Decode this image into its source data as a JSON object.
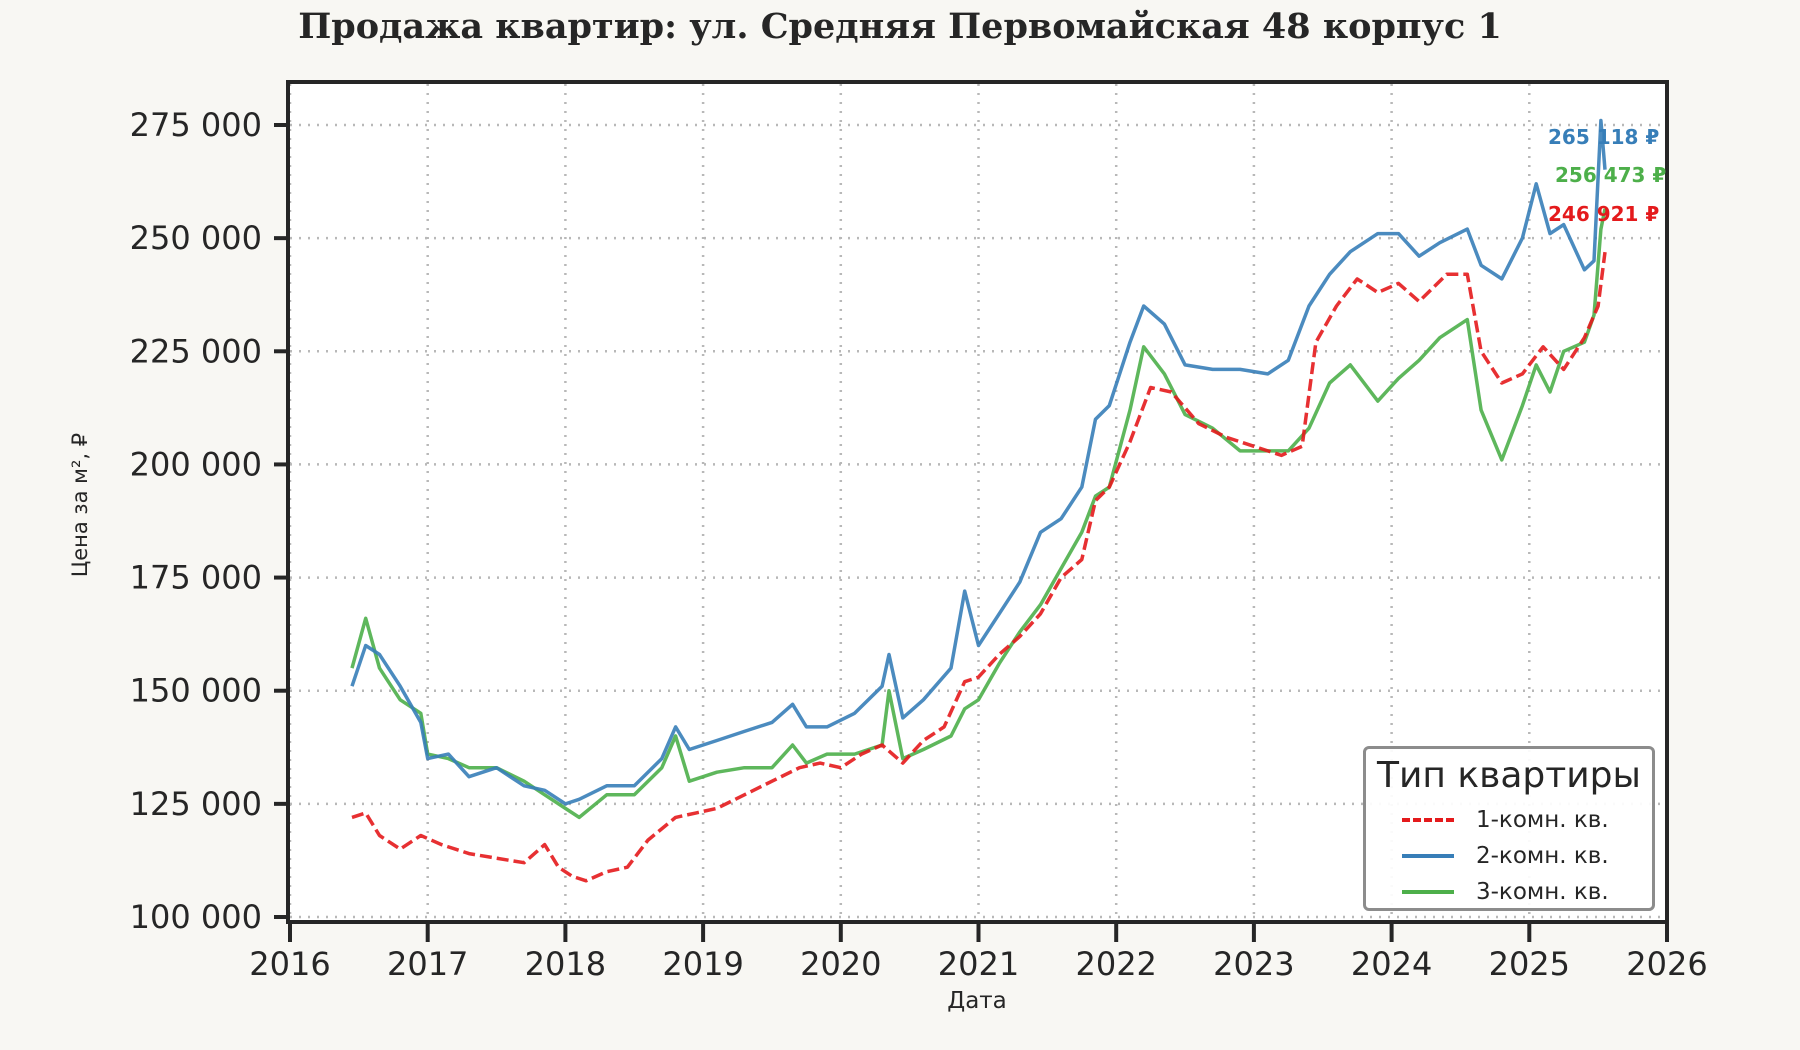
{
  "chart_data": {
    "type": "line",
    "title": "Продажа квартир: ул. Средняя Первомайская 48 корпус 1",
    "xlabel": "Дата",
    "ylabel": "Цена за м², ₽",
    "xlim": [
      2016,
      2026
    ],
    "ylim": [
      100000,
      275000
    ],
    "x_ticks": [
      "2016",
      "2017",
      "2018",
      "2019",
      "2020",
      "2021",
      "2022",
      "2023",
      "2024",
      "2025",
      "2026"
    ],
    "y_ticks": [
      "100 000",
      "125 000",
      "150 000",
      "175 000",
      "200 000",
      "225 000",
      "250 000",
      "275 000"
    ],
    "grid": true,
    "legend": {
      "title": "Тип квартиры",
      "position": "lower right"
    },
    "series": [
      {
        "name": "1-комн. кв.",
        "color": "#e41a1c",
        "style": "dashed",
        "end_label": "246 921 ₽",
        "x": [
          2016.45,
          2016.55,
          2016.65,
          2016.8,
          2016.95,
          2017.1,
          2017.3,
          2017.5,
          2017.7,
          2017.85,
          2017.95,
          2018.05,
          2018.15,
          2018.3,
          2018.45,
          2018.6,
          2018.8,
          2018.95,
          2019.1,
          2019.3,
          2019.5,
          2019.7,
          2019.85,
          2020.0,
          2020.15,
          2020.3,
          2020.45,
          2020.6,
          2020.75,
          2020.9,
          2021.0,
          2021.15,
          2021.3,
          2021.45,
          2021.6,
          2021.75,
          2021.85,
          2021.95,
          2022.1,
          2022.25,
          2022.4,
          2022.6,
          2022.8,
          2023.0,
          2023.2,
          2023.35,
          2023.45,
          2023.6,
          2023.75,
          2023.9,
          2024.05,
          2024.2,
          2024.4,
          2024.55,
          2024.65,
          2024.8,
          2024.95,
          2025.1,
          2025.25,
          2025.4,
          2025.5,
          2025.55
        ],
        "y": [
          122000,
          123000,
          118000,
          115000,
          118000,
          116000,
          114000,
          113000,
          112000,
          116000,
          111000,
          109000,
          108000,
          110000,
          111000,
          117000,
          122000,
          123000,
          124000,
          127000,
          130000,
          133000,
          134000,
          133000,
          136000,
          138000,
          134000,
          139000,
          142000,
          152000,
          153000,
          158000,
          162000,
          167000,
          175000,
          179000,
          192000,
          195000,
          205000,
          217000,
          216000,
          209000,
          206000,
          204000,
          202000,
          204000,
          227000,
          235000,
          241000,
          238000,
          240000,
          236000,
          242000,
          242000,
          225000,
          218000,
          220000,
          226000,
          221000,
          228000,
          235000,
          246921
        ]
      },
      {
        "name": "2-комн. кв.",
        "color": "#377eb8",
        "style": "solid",
        "end_label": "265 118 ₽",
        "x": [
          2016.45,
          2016.55,
          2016.65,
          2016.8,
          2016.95,
          2017.0,
          2017.15,
          2017.3,
          2017.5,
          2017.7,
          2017.85,
          2018.0,
          2018.1,
          2018.3,
          2018.5,
          2018.7,
          2018.8,
          2018.9,
          2019.1,
          2019.3,
          2019.5,
          2019.65,
          2019.75,
          2019.9,
          2020.1,
          2020.3,
          2020.35,
          2020.45,
          2020.6,
          2020.8,
          2020.9,
          2021.0,
          2021.15,
          2021.3,
          2021.45,
          2021.6,
          2021.75,
          2021.85,
          2021.95,
          2022.1,
          2022.2,
          2022.35,
          2022.5,
          2022.7,
          2022.9,
          2023.1,
          2023.25,
          2023.4,
          2023.55,
          2023.7,
          2023.9,
          2024.05,
          2024.2,
          2024.35,
          2024.55,
          2024.65,
          2024.8,
          2024.95,
          2025.05,
          2025.15,
          2025.25,
          2025.4,
          2025.47,
          2025.52,
          2025.55
        ],
        "y": [
          151000,
          160000,
          158000,
          151000,
          143000,
          135000,
          136000,
          131000,
          133000,
          129000,
          128000,
          125000,
          126000,
          129000,
          129000,
          135000,
          142000,
          137000,
          139000,
          141000,
          143000,
          147000,
          142000,
          142000,
          145000,
          151000,
          158000,
          144000,
          148000,
          155000,
          172000,
          160000,
          167000,
          174000,
          185000,
          188000,
          195000,
          210000,
          213000,
          227000,
          235000,
          231000,
          222000,
          221000,
          221000,
          220000,
          223000,
          235000,
          242000,
          247000,
          251000,
          251000,
          246000,
          249000,
          252000,
          244000,
          241000,
          250000,
          262000,
          251000,
          253000,
          243000,
          245000,
          276000,
          265118
        ]
      },
      {
        "name": "3-комн. кв.",
        "color": "#4daf4a",
        "style": "solid",
        "end_label": "256 473 ₽",
        "x": [
          2016.45,
          2016.55,
          2016.65,
          2016.8,
          2016.95,
          2017.0,
          2017.15,
          2017.3,
          2017.5,
          2017.7,
          2017.85,
          2018.0,
          2018.1,
          2018.3,
          2018.5,
          2018.7,
          2018.8,
          2018.9,
          2019.1,
          2019.3,
          2019.5,
          2019.65,
          2019.75,
          2019.9,
          2020.1,
          2020.3,
          2020.35,
          2020.45,
          2020.6,
          2020.8,
          2020.9,
          2021.0,
          2021.15,
          2021.3,
          2021.45,
          2021.6,
          2021.75,
          2021.85,
          2021.95,
          2022.1,
          2022.2,
          2022.35,
          2022.5,
          2022.7,
          2022.9,
          2023.1,
          2023.25,
          2023.4,
          2023.55,
          2023.7,
          2023.9,
          2024.05,
          2024.2,
          2024.35,
          2024.55,
          2024.65,
          2024.8,
          2024.95,
          2025.05,
          2025.15,
          2025.25,
          2025.4,
          2025.47,
          2025.52,
          2025.55
        ],
        "y": [
          155000,
          166000,
          155000,
          148000,
          145000,
          136000,
          135000,
          133000,
          133000,
          130000,
          127000,
          124000,
          122000,
          127000,
          127000,
          133000,
          140000,
          130000,
          132000,
          133000,
          133000,
          138000,
          134000,
          136000,
          136000,
          138000,
          150000,
          135000,
          137000,
          140000,
          146000,
          148000,
          156000,
          163000,
          169000,
          177000,
          185000,
          193000,
          195000,
          212000,
          226000,
          220000,
          211000,
          208000,
          203000,
          203000,
          203000,
          208000,
          218000,
          222000,
          214000,
          219000,
          223000,
          228000,
          232000,
          212000,
          201000,
          213000,
          222000,
          216000,
          225000,
          227000,
          233000,
          252000,
          256473
        ]
      }
    ]
  },
  "legend": {
    "title": "Тип квартиры",
    "items": [
      {
        "label": "1-комн. кв."
      },
      {
        "label": "2-комн. кв."
      },
      {
        "label": "3-комн. кв."
      }
    ]
  }
}
